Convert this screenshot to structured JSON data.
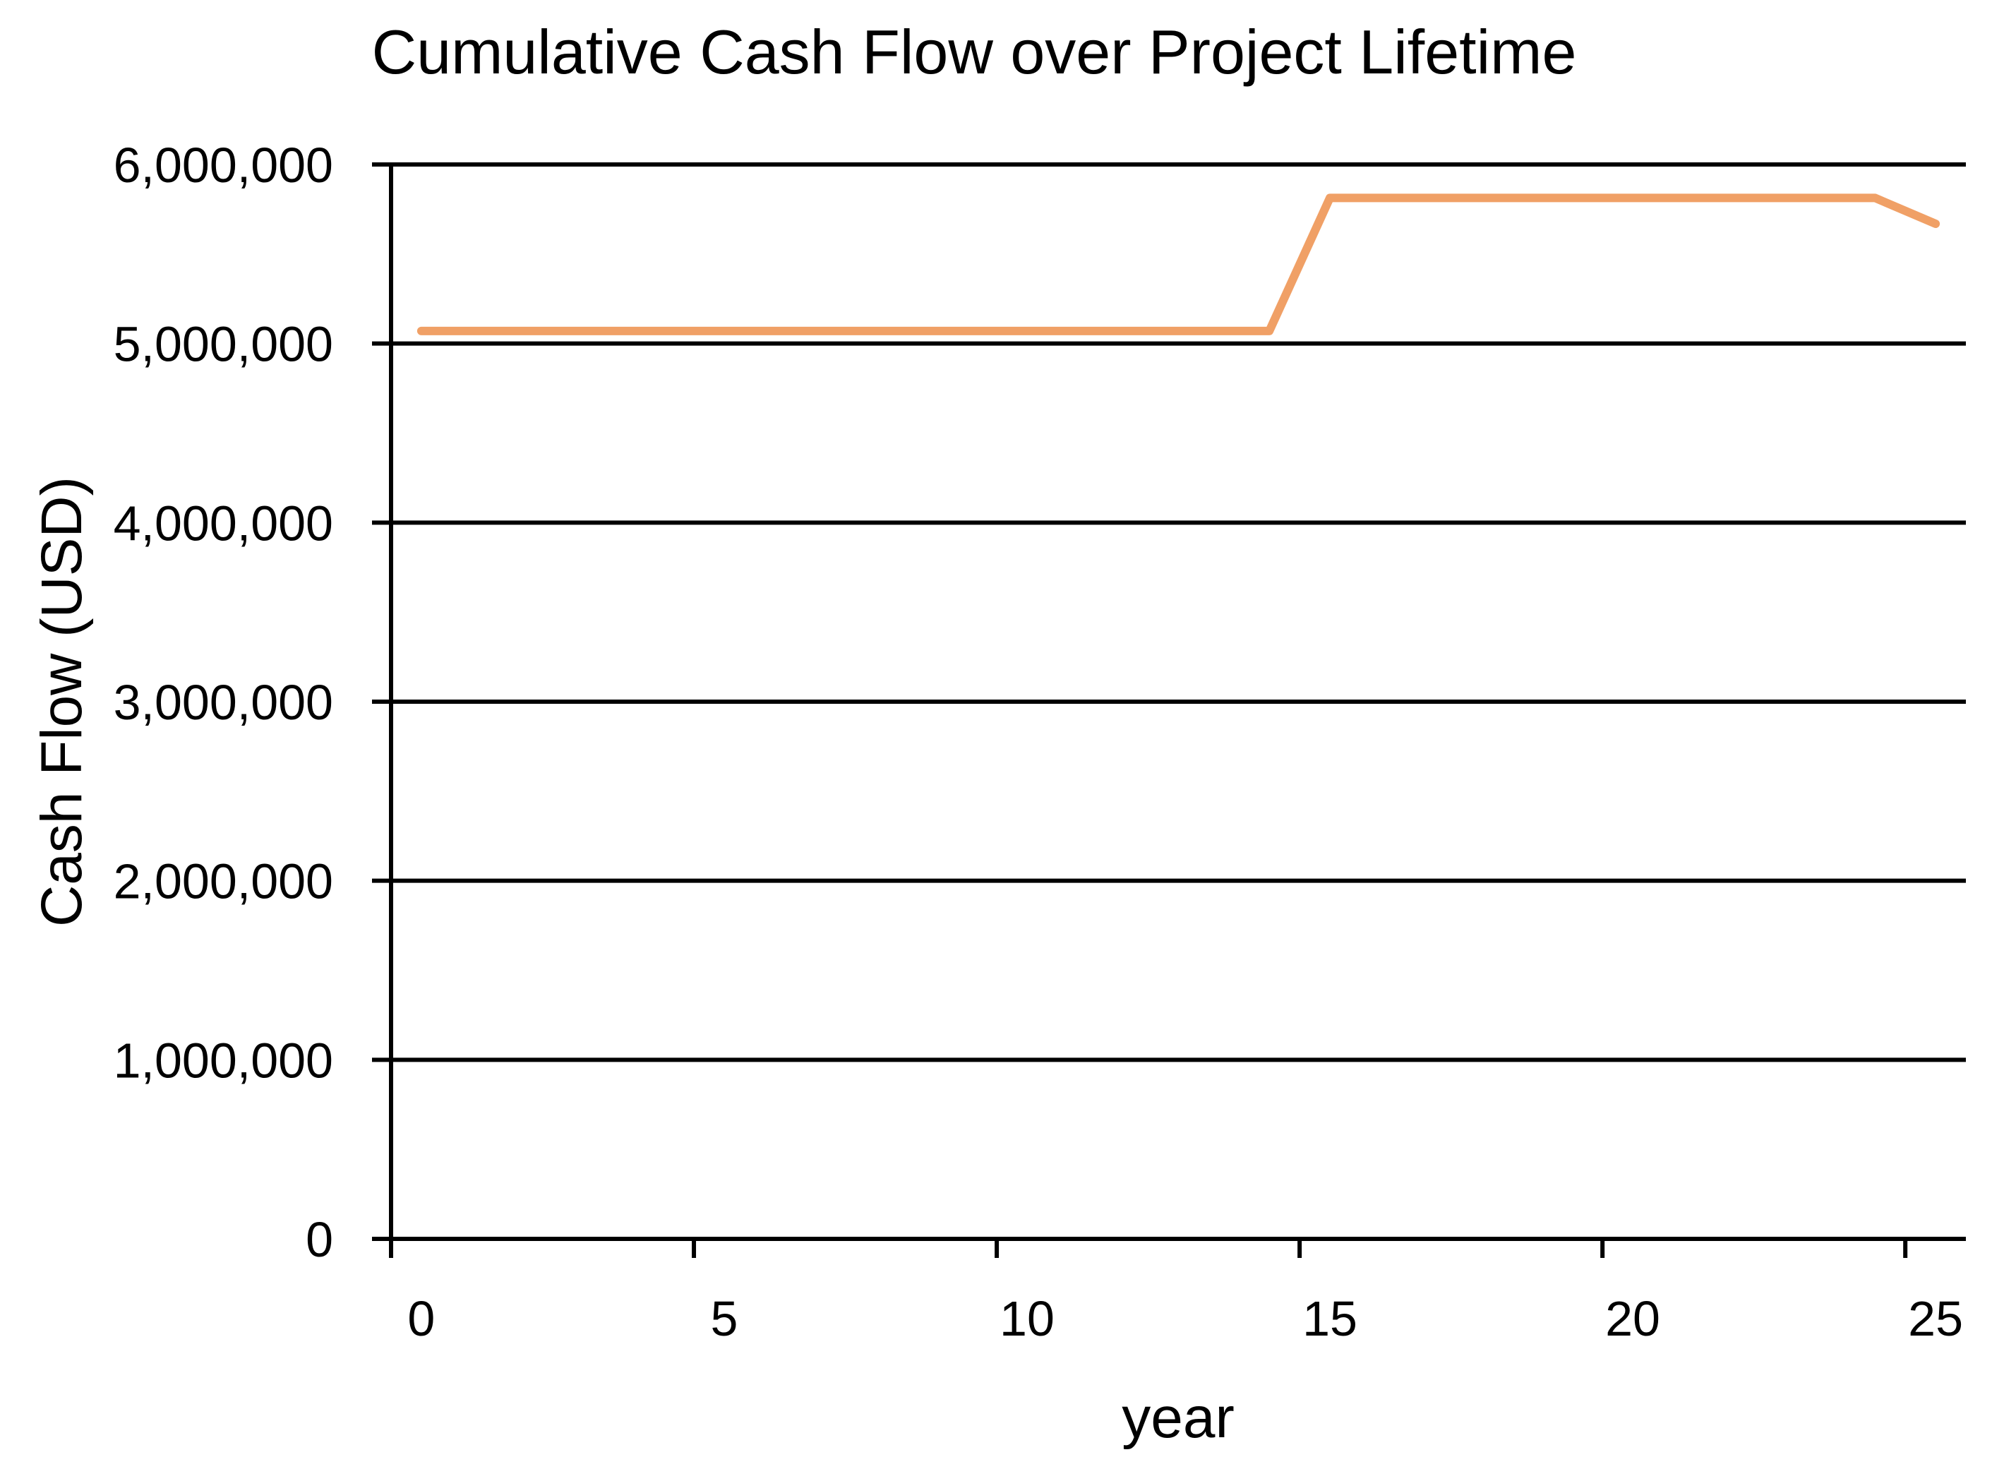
{
  "chart_data": {
    "type": "line",
    "title": "Cumulative Cash Flow over Project Lifetime",
    "xlabel": "year",
    "ylabel": "Cash Flow (USD)",
    "x": [
      0,
      1,
      2,
      3,
      4,
      5,
      6,
      7,
      8,
      9,
      10,
      11,
      12,
      13,
      14,
      15,
      16,
      17,
      18,
      19,
      20,
      21,
      22,
      23,
      24,
      25
    ],
    "series": [
      {
        "name": "Cumulative Cash Flow",
        "values": [
          5070000,
          5070000,
          5070000,
          5070000,
          5070000,
          5070000,
          5070000,
          5070000,
          5070000,
          5070000,
          5070000,
          5070000,
          5070000,
          5070000,
          5070000,
          5813000,
          5813000,
          5813000,
          5813000,
          5813000,
          5813000,
          5813000,
          5813000,
          5813000,
          5813000,
          5669000
        ]
      }
    ],
    "ylim": [
      0,
      6000000
    ],
    "yticks": [
      0,
      1000000,
      2000000,
      3000000,
      4000000,
      5000000,
      6000000
    ],
    "ytick_labels": [
      "0",
      "1,000,000",
      "2,000,000",
      "3,000,000",
      "4,000,000",
      "5,000,000",
      "6,000,000"
    ],
    "xticks": [
      0,
      5,
      10,
      15,
      20,
      25
    ],
    "xtick_labels": [
      "0",
      "5",
      "10",
      "15",
      "20",
      "25"
    ],
    "grid": "horizontal",
    "legend": "none",
    "category_axis": true,
    "colors": {
      "line": "#F0A066",
      "axis": "#000000",
      "grid": "#000000",
      "background": "#FFFFFF",
      "text": "#000000"
    }
  }
}
